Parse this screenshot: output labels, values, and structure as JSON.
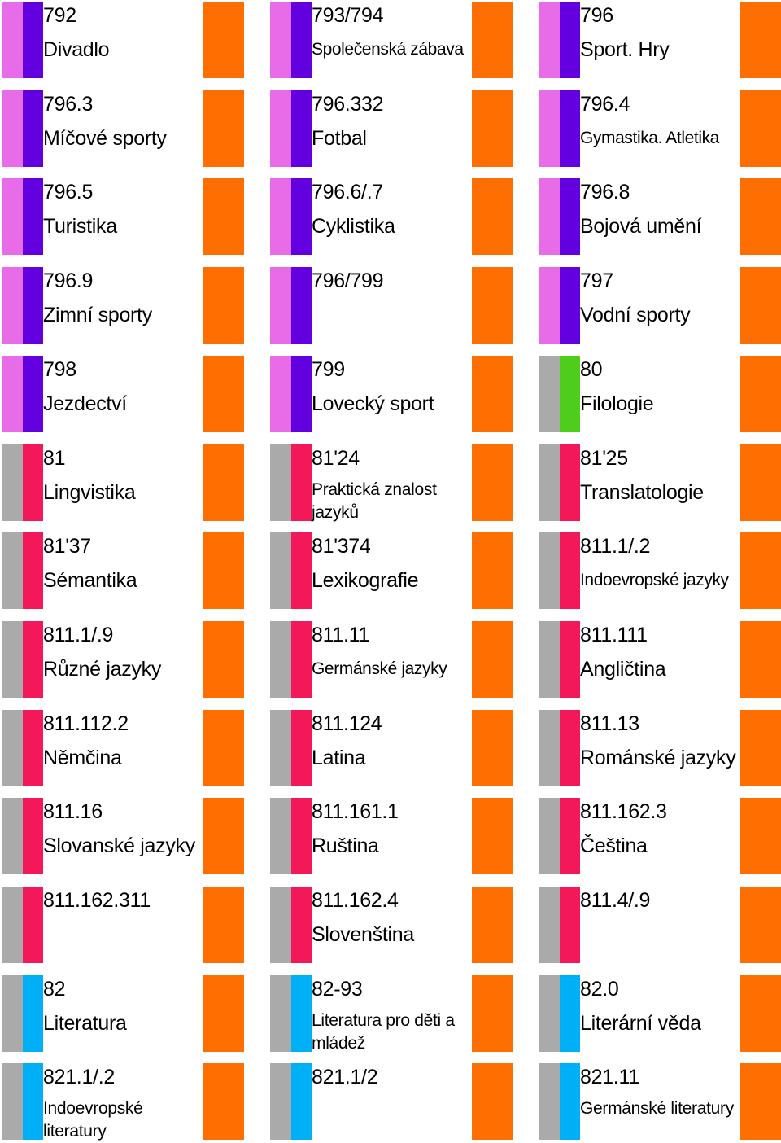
{
  "colors": {
    "orange": "#ff6e00",
    "pink": "#e86be8",
    "violet": "#6200e0",
    "grey": "#aaaaaa",
    "green": "#4ecd1b",
    "crimson": "#f3185a",
    "cyan": "#00b0f6"
  },
  "labels": [
    {
      "code": "792",
      "name": "Divadlo",
      "c1": "#e86be8",
      "c2": "#6200e0",
      "style": "normal"
    },
    {
      "code": "793/794",
      "name": "Společenská zábava",
      "c1": "#e86be8",
      "c2": "#6200e0",
      "style": "small"
    },
    {
      "code": "796",
      "name": "Sport. Hry",
      "c1": "#e86be8",
      "c2": "#6200e0",
      "style": "normal"
    },
    {
      "code": "796.3",
      "name": "Míčové sporty",
      "c1": "#e86be8",
      "c2": "#6200e0",
      "style": "normal"
    },
    {
      "code": "796.332",
      "name": "Fotbal",
      "c1": "#e86be8",
      "c2": "#6200e0",
      "style": "normal"
    },
    {
      "code": "796.4",
      "name": "Gymastika. Atletika",
      "c1": "#e86be8",
      "c2": "#6200e0",
      "style": "small"
    },
    {
      "code": "796.5",
      "name": "Turistika",
      "c1": "#e86be8",
      "c2": "#6200e0",
      "style": "normal"
    },
    {
      "code": "796.6/.7",
      "name": "Cyklistika",
      "c1": "#e86be8",
      "c2": "#6200e0",
      "style": "normal"
    },
    {
      "code": "796.8",
      "name": "Bojová umění",
      "c1": "#e86be8",
      "c2": "#6200e0",
      "style": "normal"
    },
    {
      "code": "796.9",
      "name": "Zimní sporty",
      "c1": "#e86be8",
      "c2": "#6200e0",
      "style": "normal"
    },
    {
      "code": "796/799",
      "name": "",
      "c1": "#e86be8",
      "c2": "#6200e0",
      "style": "normal"
    },
    {
      "code": "797",
      "name": "Vodní sporty",
      "c1": "#e86be8",
      "c2": "#6200e0",
      "style": "normal"
    },
    {
      "code": "798",
      "name": "Jezdectví",
      "c1": "#e86be8",
      "c2": "#6200e0",
      "style": "normal"
    },
    {
      "code": "799",
      "name": "Lovecký sport",
      "c1": "#e86be8",
      "c2": "#6200e0",
      "style": "normal"
    },
    {
      "code": "80",
      "name": "Filologie",
      "c1": "#aaaaaa",
      "c2": "#4ecd1b",
      "style": "normal"
    },
    {
      "code": "81",
      "name": "Lingvistika",
      "c1": "#aaaaaa",
      "c2": "#f3185a",
      "style": "normal"
    },
    {
      "code": "81'24",
      "name": "Praktická znalost jazyků",
      "c1": "#aaaaaa",
      "c2": "#f3185a",
      "style": "wrap"
    },
    {
      "code": "81'25",
      "name": "Translatologie",
      "c1": "#aaaaaa",
      "c2": "#f3185a",
      "style": "normal"
    },
    {
      "code": "81'37",
      "name": "Sémantika",
      "c1": "#aaaaaa",
      "c2": "#f3185a",
      "style": "normal"
    },
    {
      "code": "81'374",
      "name": "Lexikografie",
      "c1": "#aaaaaa",
      "c2": "#f3185a",
      "style": "normal"
    },
    {
      "code": "811.1/.2",
      "name": "Indoevropské jazyky",
      "c1": "#aaaaaa",
      "c2": "#f3185a",
      "style": "small"
    },
    {
      "code": "811.1/.9",
      "name": "Různé jazyky",
      "c1": "#aaaaaa",
      "c2": "#f3185a",
      "style": "normal"
    },
    {
      "code": "811.11",
      "name": "Germánské jazyky",
      "c1": "#aaaaaa",
      "c2": "#f3185a",
      "style": "small"
    },
    {
      "code": "811.111",
      "name": "Angličtina",
      "c1": "#aaaaaa",
      "c2": "#f3185a",
      "style": "normal"
    },
    {
      "code": "811.112.2",
      "name": "Němčina",
      "c1": "#aaaaaa",
      "c2": "#f3185a",
      "style": "normal"
    },
    {
      "code": "811.124",
      "name": "Latina",
      "c1": "#aaaaaa",
      "c2": "#f3185a",
      "style": "normal"
    },
    {
      "code": "811.13",
      "name": "Románské jazyky",
      "c1": "#aaaaaa",
      "c2": "#f3185a",
      "style": "normal"
    },
    {
      "code": "811.16",
      "name": "Slovanské jazyky",
      "c1": "#aaaaaa",
      "c2": "#f3185a",
      "style": "normal"
    },
    {
      "code": "811.161.1",
      "name": "Ruština",
      "c1": "#aaaaaa",
      "c2": "#f3185a",
      "style": "normal"
    },
    {
      "code": "811.162.3",
      "name": "Čeština",
      "c1": "#aaaaaa",
      "c2": "#f3185a",
      "style": "normal"
    },
    {
      "code": "811.162.311",
      "name": "",
      "c1": "#aaaaaa",
      "c2": "#f3185a",
      "style": "normal"
    },
    {
      "code": "811.162.4",
      "name": "Slovenština",
      "c1": "#aaaaaa",
      "c2": "#f3185a",
      "style": "normal"
    },
    {
      "code": "811.4/.9",
      "name": "",
      "c1": "#aaaaaa",
      "c2": "#f3185a",
      "style": "normal"
    },
    {
      "code": "82",
      "name": "Literatura",
      "c1": "#aaaaaa",
      "c2": "#00b0f6",
      "style": "normal"
    },
    {
      "code": "82-93",
      "name": "Literatura pro děti a mládež",
      "c1": "#aaaaaa",
      "c2": "#00b0f6",
      "style": "wrap"
    },
    {
      "code": "82.0",
      "name": "Literární věda",
      "c1": "#aaaaaa",
      "c2": "#00b0f6",
      "style": "normal"
    },
    {
      "code": "821.1/.2",
      "name": "Indoevropské literatury",
      "c1": "#aaaaaa",
      "c2": "#00b0f6",
      "style": "wrap"
    },
    {
      "code": "821.1/2",
      "name": "",
      "c1": "#aaaaaa",
      "c2": "#00b0f6",
      "style": "normal"
    },
    {
      "code": "821.11",
      "name": "Germánské literatury",
      "c1": "#aaaaaa",
      "c2": "#00b0f6",
      "style": "wrap"
    }
  ]
}
